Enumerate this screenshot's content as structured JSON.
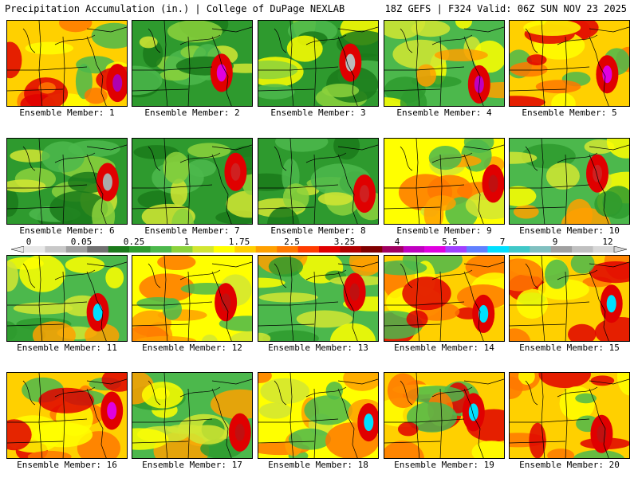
{
  "header": {
    "left": "Precipitation Accumulation (in.) | College of DuPage NEXLAB",
    "right": "18Z GEFS | F324 Valid: 06Z SUN NOV 23 2025"
  },
  "panels": [
    {
      "label": "Ensemble Member: 1",
      "theme": "red",
      "accent": "#b000b0"
    },
    {
      "label": "Ensemble Member: 2",
      "theme": "green",
      "accent": "#e000e0"
    },
    {
      "label": "Ensemble Member: 3",
      "theme": "greengray",
      "accent": "#bbbbbb"
    },
    {
      "label": "Ensemble Member: 4",
      "theme": "greenyellow",
      "accent": "#c000c0"
    },
    {
      "label": "Ensemble Member: 5",
      "theme": "red",
      "accent": "#e000e0"
    },
    {
      "label": "Ensemble Member: 6",
      "theme": "green",
      "accent": "#aaaaaa"
    },
    {
      "label": "Ensemble Member: 7",
      "theme": "green",
      "accent": "#d02020"
    },
    {
      "label": "Ensemble Member: 8",
      "theme": "green",
      "accent": "#d02020"
    },
    {
      "label": "Ensemble Member: 9",
      "theme": "yellow",
      "accent": "#c01010"
    },
    {
      "label": "Ensemble Member: 10",
      "theme": "greenyellow",
      "accent": "#d02020"
    },
    {
      "label": "Ensemble Member: 11",
      "theme": "greenyellow",
      "accent": "#00e0ff"
    },
    {
      "label": "Ensemble Member: 12",
      "theme": "yellow",
      "accent": "#c01010"
    },
    {
      "label": "Ensemble Member: 13",
      "theme": "greenyellow",
      "accent": "#c01010"
    },
    {
      "label": "Ensemble Member: 14",
      "theme": "red",
      "accent": "#00e0ff"
    },
    {
      "label": "Ensemble Member: 15",
      "theme": "red",
      "accent": "#00e0ff"
    },
    {
      "label": "Ensemble Member: 16",
      "theme": "red",
      "accent": "#e000e0"
    },
    {
      "label": "Ensemble Member: 17",
      "theme": "greenyellow",
      "accent": "#c01010"
    },
    {
      "label": "Ensemble Member: 18",
      "theme": "yellow",
      "accent": "#00e0ff"
    },
    {
      "label": "Ensemble Member: 19",
      "theme": "red",
      "accent": "#00e0ff"
    },
    {
      "label": "Ensemble Member: 20",
      "theme": "red",
      "accent": "#c01010"
    }
  ],
  "colorbar": {
    "ticks": [
      "0",
      "0.05",
      "0.25",
      "1",
      "1.75",
      "2.5",
      "3.25",
      "4",
      "5.5",
      "7",
      "9",
      "12"
    ],
    "colors": [
      "#e8e8e8",
      "#c8c8c8",
      "#a0a0a0",
      "#707070",
      "#1a7a1a",
      "#2e9a2e",
      "#4cb84c",
      "#8cd23c",
      "#d2e632",
      "#ffff00",
      "#ffd000",
      "#ffa000",
      "#ff7800",
      "#ff3c00",
      "#e00000",
      "#b00000",
      "#800000",
      "#a00060",
      "#c000c0",
      "#e000e0",
      "#a040ff",
      "#6080ff",
      "#00e0ff",
      "#40c8c8",
      "#80c0c0",
      "#a0a0a0",
      "#c0c0c0",
      "#d8d8d8"
    ]
  }
}
